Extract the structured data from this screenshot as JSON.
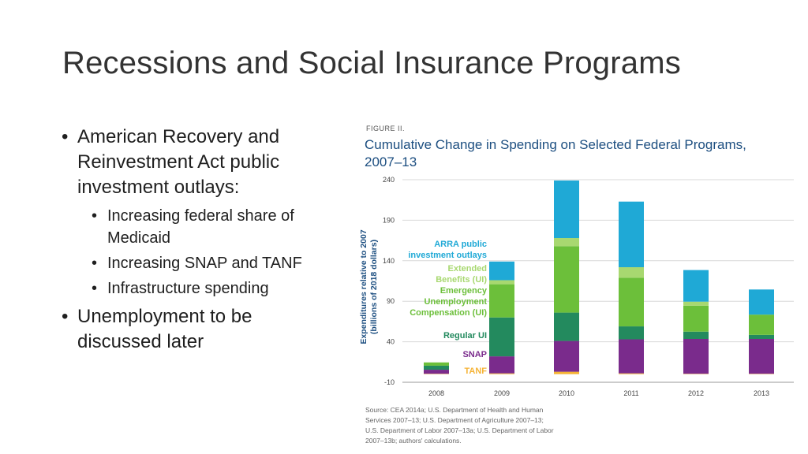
{
  "slide": {
    "title": "Recessions and Social Insurance Programs",
    "bullets": [
      {
        "text": "American Recovery and Reinvestment Act public investment outlays:",
        "sub": [
          "Increasing federal share of Medicaid",
          "Increasing SNAP and TANF",
          "Infrastructure spending"
        ]
      },
      {
        "text": "Unemployment to be discussed later",
        "sub": []
      }
    ]
  },
  "figure": {
    "label": "FIGURE II.",
    "title_line1": "Cumulative Change in Spending on Selected Federal Programs,",
    "title_line2": "2007–13",
    "ylabel_line1": "Expenditures relative to 2007",
    "ylabel_line2": "(billions of 2018 dollars)",
    "source_lines": [
      "Source: CEA 2014a; U.S. Department of Health and Human",
      "Services 2007–13; U.S. Department of Agriculture 2007–13;",
      "U.S. Department of Labor 2007–13a; U.S. Department of Labor",
      "2007–13b; authors' calculations."
    ]
  },
  "chart_data": {
    "type": "bar",
    "stacked": true,
    "categories": [
      "2008",
      "2009",
      "2010",
      "2011",
      "2012",
      "2013"
    ],
    "ylim": [
      -10,
      240
    ],
    "yticks": [
      -10,
      40,
      90,
      140,
      190,
      240
    ],
    "grid": true,
    "series": [
      {
        "name": "TANF",
        "color": "#f5b335",
        "values": [
          0.5,
          1,
          3,
          1,
          0.5,
          0.5
        ]
      },
      {
        "name": "SNAP",
        "color": "#7a2b8c",
        "values": [
          5,
          21,
          38,
          42,
          43,
          43
        ]
      },
      {
        "name": "Regular UI",
        "color": "#238a5e",
        "values": [
          5,
          48,
          35,
          16,
          9,
          5
        ]
      },
      {
        "name": "Emergency Unemployment Compensation (UI)",
        "color": "#6cbf3a",
        "values": [
          4,
          41,
          82,
          60,
          32,
          25
        ]
      },
      {
        "name": "Extended Benefits (UI)",
        "color": "#a8d870",
        "values": [
          0,
          5,
          10,
          13,
          5,
          0
        ]
      },
      {
        "name": "ARRA public investment outlays",
        "color": "#1fa9d6",
        "values": [
          0,
          23,
          71,
          81,
          39,
          31
        ]
      }
    ]
  }
}
